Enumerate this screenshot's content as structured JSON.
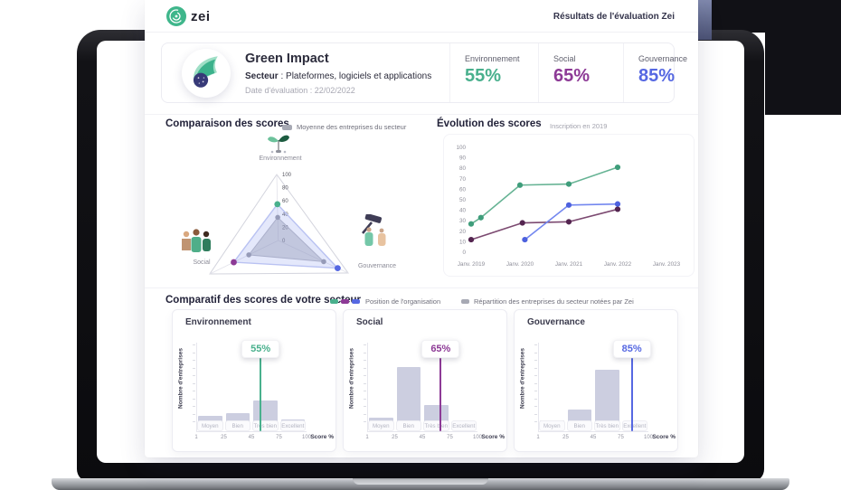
{
  "header": {
    "logo": "zei",
    "title": "Résultats de l'évaluation Zei"
  },
  "company": {
    "name": "Green Impact",
    "sector_bold": "Secteur",
    "sector_rest": " : Plateformes, logiciels et applications",
    "date": "Date d'évaluation : 22/02/2022",
    "scores": [
      {
        "label": "Environnement",
        "value": "55%",
        "color": "#49b08d"
      },
      {
        "label": "Social",
        "value": "65%",
        "color": "#8d3a96"
      },
      {
        "label": "Gouvernance",
        "value": "85%",
        "color": "#5668e2"
      }
    ]
  },
  "radar": {
    "title": "Comparaison des scores",
    "legend": "Moyenne des entreprises du secteur",
    "axes": [
      "Environnement",
      "Social",
      "Gouvernance"
    ],
    "dot_colors": [
      "#49b08d",
      "#8d3a96",
      "#5668e2"
    ]
  },
  "evolution": {
    "title": "Évolution des scores",
    "subtitle": "Inscription en 2019"
  },
  "sector_section": {
    "title": "Comparatif des scores de votre secteur",
    "legend_org": "Position de l'organisation",
    "legend_dist": "Répartition des entreprises du secteur notées par Zei",
    "swatches": [
      "#49b08d",
      "#8d3a96",
      "#5668e2"
    ],
    "dist_swatch": "#a7a9b4",
    "y_label": "Nombre d'entreprises",
    "x_label": "Score %"
  },
  "chart_data": [
    {
      "type": "radar",
      "title": "Comparaison des scores",
      "axes": [
        "Environnement",
        "Social",
        "Gouvernance"
      ],
      "scale_ticks": [
        100,
        80,
        60,
        40,
        20,
        0
      ],
      "series": [
        {
          "name": "Organisation",
          "values": [
            55,
            65,
            85
          ]
        },
        {
          "name": "Moyenne des entreprises du secteur",
          "values": [
            35,
            43,
            65
          ]
        }
      ]
    },
    {
      "type": "line",
      "title": "Évolution des scores",
      "x_ticks": [
        "Janv. 2019",
        "Janv. 2020",
        "Janv. 2021",
        "Janv. 2022",
        "Janv. 2023"
      ],
      "x_range": [
        2019,
        2023
      ],
      "y_range": [
        0,
        100
      ],
      "y_ticks": [
        100,
        90,
        80,
        70,
        60,
        50,
        40,
        30,
        20,
        10,
        0
      ],
      "series": [
        {
          "name": "Environnement",
          "color": "#66b394",
          "marker_color": "#3f9d7b",
          "points": [
            [
              2019.0,
              27
            ],
            [
              2019.2,
              33
            ],
            [
              2020.0,
              64
            ],
            [
              2021.0,
              65
            ],
            [
              2022.0,
              81
            ]
          ]
        },
        {
          "name": "Social",
          "color": "#7c4a71",
          "marker_color": "#542550",
          "points": [
            [
              2019.0,
              12
            ],
            [
              2020.05,
              28
            ],
            [
              2021.0,
              29
            ],
            [
              2022.0,
              41
            ]
          ]
        },
        {
          "name": "Gouvernance",
          "color": "#7387ef",
          "marker_color": "#4d61de",
          "points": [
            [
              2020.1,
              12
            ],
            [
              2021.0,
              45
            ],
            [
              2022.0,
              46
            ]
          ]
        }
      ]
    },
    {
      "type": "bar",
      "title": "Environnement",
      "categories": [
        "Moyen",
        "Bien",
        "Très bien",
        "Excellent"
      ],
      "band_edges": [
        1,
        25,
        45,
        75,
        100
      ],
      "values_rel": [
        12,
        15,
        30,
        8
      ],
      "marker": 55,
      "marker_label": "55%",
      "color": "#49b08d",
      "xlabel": "Score %",
      "ylabel": "Nombre d'entreprises"
    },
    {
      "type": "bar",
      "title": "Social",
      "categories": [
        "Moyen",
        "Bien",
        "Très bien",
        "Excellent"
      ],
      "band_edges": [
        1,
        25,
        45,
        75,
        100
      ],
      "values_rel": [
        10,
        71,
        25,
        3
      ],
      "marker": 65,
      "marker_label": "65%",
      "color": "#8d3a96",
      "xlabel": "Score %",
      "ylabel": "Nombre d'entreprises"
    },
    {
      "type": "bar",
      "title": "Gouvernance",
      "categories": [
        "Moyen",
        "Bien",
        "Très bien",
        "Excellent"
      ],
      "band_edges": [
        1,
        25,
        45,
        75,
        100
      ],
      "values_rel": [
        7,
        20,
        67,
        3
      ],
      "marker": 85,
      "marker_label": "85%",
      "color": "#5668e2",
      "xlabel": "Score %",
      "ylabel": "Nombre d'entreprises"
    }
  ]
}
